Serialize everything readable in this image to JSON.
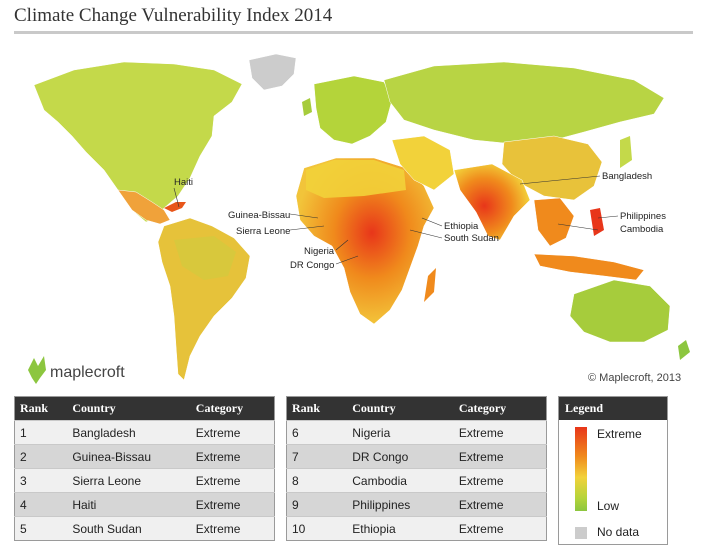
{
  "title": "Climate Change Vulnerability Index 2014",
  "map": {
    "brand": "maplecroft",
    "copyright": "© Maplecroft, 2013",
    "labels": {
      "haiti": "Haiti",
      "guinea_bissau": "Guinea-Bissau",
      "sierra_leone": "Sierra Leone",
      "nigeria": "Nigeria",
      "dr_congo": "DR Congo",
      "ethiopia": "Ethiopia",
      "south_sudan": "South Sudan",
      "bangladesh": "Bangladesh",
      "philippines": "Philippines",
      "cambodia": "Cambodia"
    },
    "colors": {
      "extreme": "#e8361a",
      "high": "#f08a1c",
      "medium": "#f2d23a",
      "low": "#8cc63f",
      "no_data": "#cccccc",
      "ocean": "#ffffff"
    }
  },
  "table_headers": {
    "rank": "Rank",
    "country": "Country",
    "category": "Category"
  },
  "table_left": [
    {
      "rank": "1",
      "country": "Bangladesh",
      "category": "Extreme"
    },
    {
      "rank": "2",
      "country": "Guinea-Bissau",
      "category": "Extreme"
    },
    {
      "rank": "3",
      "country": "Sierra Leone",
      "category": "Extreme"
    },
    {
      "rank": "4",
      "country": "Haiti",
      "category": "Extreme"
    },
    {
      "rank": "5",
      "country": "South Sudan",
      "category": "Extreme"
    }
  ],
  "table_right": [
    {
      "rank": "6",
      "country": "Nigeria",
      "category": "Extreme"
    },
    {
      "rank": "7",
      "country": "DR Congo",
      "category": "Extreme"
    },
    {
      "rank": "8",
      "country": "Cambodia",
      "category": "Extreme"
    },
    {
      "rank": "9",
      "country": "Philippines",
      "category": "Extreme"
    },
    {
      "rank": "10",
      "country": "Ethiopia",
      "category": "Extreme"
    }
  ],
  "legend": {
    "title": "Legend",
    "high_label": "Extreme",
    "low_label": "Low",
    "no_data_label": "No data"
  }
}
